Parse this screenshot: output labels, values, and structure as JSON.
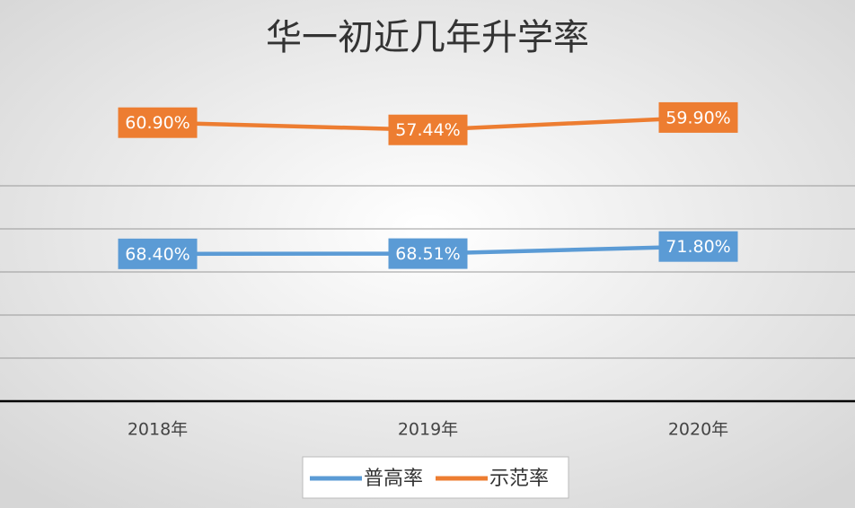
{
  "chart_data": {
    "type": "line",
    "stacked": true,
    "title": "华一初近几年升学率",
    "categories": [
      "2018年",
      "2019年",
      "2020年"
    ],
    "series": [
      {
        "name": "普高率",
        "color": "#5b9bd5",
        "values": [
          68.4,
          68.51,
          71.8
        ],
        "value_labels": [
          "68.40%",
          "68.51%",
          "71.80%"
        ]
      },
      {
        "name": "示范率",
        "color": "#ed7d31",
        "values": [
          60.9,
          57.44,
          59.9
        ],
        "value_labels": [
          "60.90%",
          "57.44%",
          "59.90%"
        ]
      }
    ],
    "ylim": [
      0,
      140
    ],
    "grid_values": [
      0,
      20,
      40,
      60,
      80,
      100
    ],
    "grid": true,
    "legend": "bottom"
  }
}
